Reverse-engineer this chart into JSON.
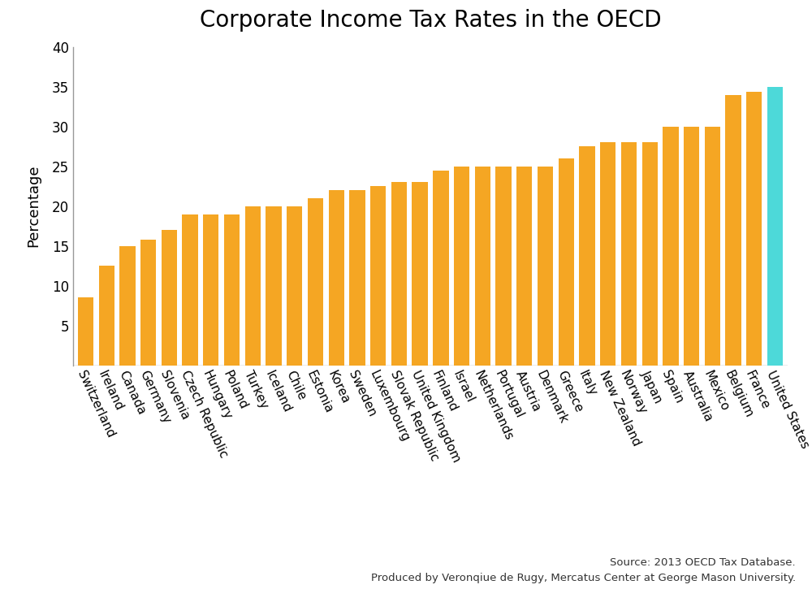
{
  "title": "Corporate Income Tax Rates in the OECD",
  "ylabel": "Percentage",
  "source_line1": "Source: 2013 OECD Tax Database.",
  "source_line2": "Produced by Veronqiue de Rugy, Mercatus Center at George Mason University.",
  "ylim": [
    0,
    40
  ],
  "yticks": [
    5,
    10,
    15,
    20,
    25,
    30,
    35,
    40
  ],
  "bar_color_default": "#F5A623",
  "bar_color_us": "#4DD9D9",
  "spine_color": "#999999",
  "countries": [
    "Switzerland",
    "Ireland",
    "Canada",
    "Germany",
    "Slovenia",
    "Czech Republic",
    "Hungary",
    "Poland",
    "Turkey",
    "Iceland",
    "Chile",
    "Estonia",
    "Korea",
    "Sweden",
    "Luxembourg",
    "Slovak Republic",
    "United Kingdom",
    "Finland",
    "Israel",
    "Netherlands",
    "Portugal",
    "Austria",
    "Denmark",
    "Greece",
    "Italy",
    "New Zealand",
    "Norway",
    "Japan",
    "Spain",
    "Australia",
    "Mexico",
    "Belgium",
    "France",
    "United States"
  ],
  "values": [
    8.5,
    12.5,
    15.0,
    15.8,
    17.0,
    19.0,
    19.0,
    19.0,
    20.0,
    20.0,
    20.0,
    21.0,
    22.0,
    22.0,
    22.5,
    23.0,
    23.0,
    24.5,
    25.0,
    25.0,
    25.0,
    25.0,
    25.0,
    26.0,
    27.5,
    28.0,
    28.0,
    28.0,
    30.0,
    30.0,
    30.0,
    34.0,
    34.43,
    35.0
  ],
  "title_fontsize": 20,
  "ylabel_fontsize": 13,
  "tick_label_fontsize": 12,
  "xticklabel_fontsize": 11,
  "source_fontsize": 9.5
}
